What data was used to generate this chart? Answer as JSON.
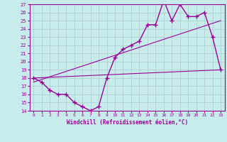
{
  "xlabel": "Windchill (Refroidissement éolien,°C)",
  "background_color": "#c8ecec",
  "line_color": "#990099",
  "grid_color": "#aacccc",
  "xlim": [
    -0.5,
    23.5
  ],
  "ylim": [
    14,
    27
  ],
  "xticks": [
    0,
    1,
    2,
    3,
    4,
    5,
    6,
    7,
    8,
    9,
    10,
    11,
    12,
    13,
    14,
    15,
    16,
    17,
    18,
    19,
    20,
    21,
    22,
    23
  ],
  "yticks": [
    14,
    15,
    16,
    17,
    18,
    19,
    20,
    21,
    22,
    23,
    24,
    25,
    26,
    27
  ],
  "hours": [
    0,
    1,
    2,
    3,
    4,
    5,
    6,
    7,
    8,
    9,
    10,
    11,
    12,
    13,
    14,
    15,
    16,
    17,
    18,
    19,
    20,
    21,
    22,
    23
  ],
  "temp": [
    18,
    17.5,
    16.5,
    16,
    16,
    15,
    14.5,
    14,
    14.5,
    18,
    20.5,
    21.5,
    22,
    22.5,
    24.5,
    24.5,
    27.5,
    25,
    27,
    25.5,
    25.5,
    26,
    23,
    19
  ],
  "trend1_x": [
    0,
    23
  ],
  "trend1_y": [
    18,
    19
  ],
  "trend2_x": [
    0,
    23
  ],
  "trend2_y": [
    17.5,
    25
  ]
}
